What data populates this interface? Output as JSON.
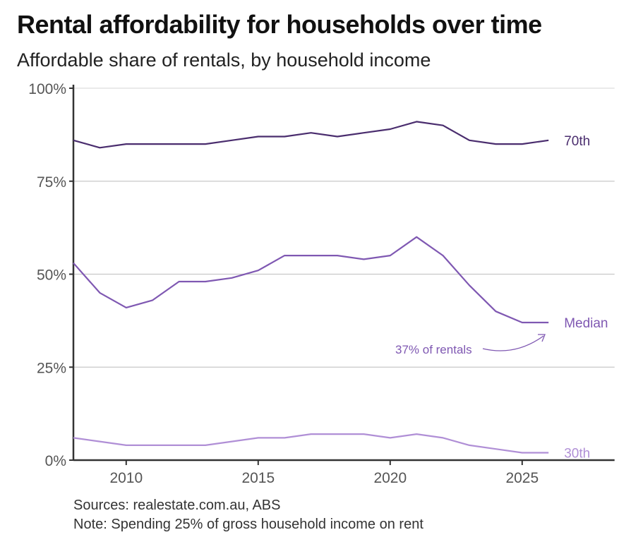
{
  "chart_data": {
    "type": "line",
    "title": "Rental affordability for households over time",
    "subtitle": "Affordable share of rentals, by household income",
    "x": [
      2008,
      2009,
      2010,
      2011,
      2012,
      2013,
      2014,
      2015,
      2016,
      2017,
      2018,
      2019,
      2020,
      2021,
      2022,
      2023,
      2024,
      2025,
      2026
    ],
    "xticks": [
      "2010",
      "2015",
      "2020",
      "2025"
    ],
    "yticks": [
      "0%",
      "25%",
      "50%",
      "75%",
      "100%"
    ],
    "xlim": [
      2008,
      2028.5
    ],
    "ylim": [
      0,
      100
    ],
    "grid": "horizontal",
    "series": [
      {
        "name": "70th",
        "color": "#4a2d6e",
        "values": [
          86,
          84,
          85,
          85,
          85,
          85,
          86,
          87,
          87,
          88,
          87,
          88,
          89,
          91,
          90,
          86,
          85,
          85,
          86
        ]
      },
      {
        "name": "Median",
        "color": "#7f58b2",
        "values": [
          53,
          45,
          41,
          43,
          48,
          48,
          49,
          51,
          55,
          55,
          55,
          54,
          55,
          60,
          55,
          47,
          40,
          37,
          37
        ]
      },
      {
        "name": "30th",
        "color": "#b08fd6",
        "values": [
          6,
          5,
          4,
          4,
          4,
          4,
          5,
          6,
          6,
          7,
          7,
          7,
          6,
          7,
          6,
          4,
          3,
          2,
          2
        ]
      }
    ],
    "annotation": {
      "text": "37% of rentals",
      "x": 2025.8,
      "y": 37,
      "series": "Median"
    },
    "sources": "Sources: realestate.com.au, ABS",
    "note": "Note: Spending 25% of gross household income on rent"
  }
}
